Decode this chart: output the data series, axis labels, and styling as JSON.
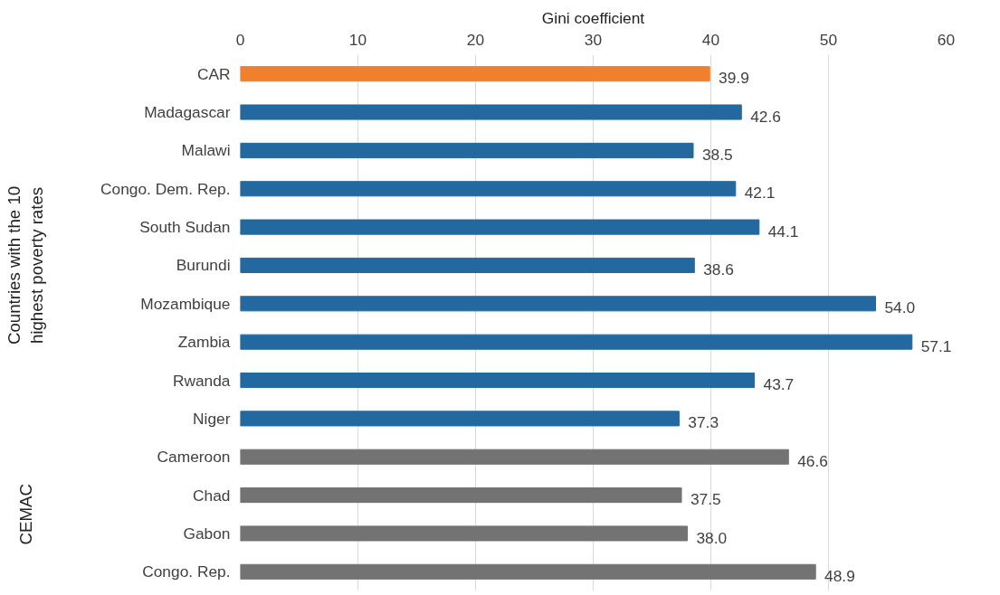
{
  "chart_data": {
    "type": "bar",
    "orientation": "horizontal",
    "xlabel": "Gini coefficient",
    "categories": [
      "CAR",
      "Madagascar",
      "Malawi",
      "Congo. Dem. Rep.",
      "South Sudan",
      "Burundi",
      "Mozambique",
      "Zambia",
      "Rwanda",
      "Niger",
      "Cameroon",
      "Chad",
      "Gabon",
      "Congo. Rep."
    ],
    "values": [
      39.9,
      42.6,
      38.5,
      42.1,
      44.1,
      38.6,
      54.0,
      57.1,
      43.7,
      37.3,
      46.6,
      37.5,
      38.0,
      48.9
    ],
    "colors": [
      "#f07f2e",
      "#2369a0",
      "#2369a0",
      "#2369a0",
      "#2369a0",
      "#2369a0",
      "#2369a0",
      "#2369a0",
      "#2369a0",
      "#2369a0",
      "#737373",
      "#737373",
      "#737373",
      "#737373"
    ],
    "value_labels": [
      "39.9",
      "42.6",
      "38.5",
      "42.1",
      "44.1",
      "38.6",
      "54.0",
      "57.1",
      "43.7",
      "37.3",
      "46.6",
      "37.5",
      "38.0",
      "48.9"
    ],
    "xlim": [
      0,
      60
    ],
    "xticks": [
      0,
      10,
      20,
      30,
      40,
      50,
      60
    ],
    "grid": "x",
    "annotations": [
      "Countries with the 10 highest poverty rates",
      "CEMAC"
    ]
  }
}
